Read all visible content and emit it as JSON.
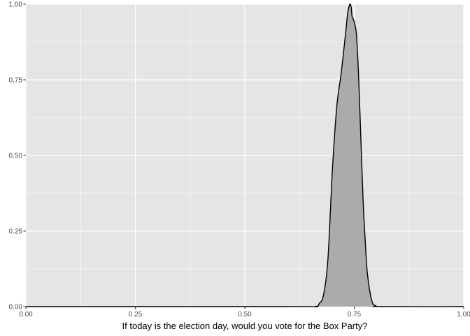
{
  "chart_data": {
    "type": "area",
    "title": "",
    "xlabel": "If today is the election day, would you vote for the Box Party?",
    "ylabel": "",
    "xlim": [
      0,
      1
    ],
    "ylim": [
      0,
      1
    ],
    "grid": true,
    "panel_color": "#e5e5e5",
    "grid_color": "#ffffff",
    "fill_color": "#ababab",
    "line_color": "#000000",
    "x_ticks": [
      {
        "value": 0,
        "label": "0.00"
      },
      {
        "value": 0.25,
        "label": "0.25"
      },
      {
        "value": 0.5,
        "label": "0.50"
      },
      {
        "value": 0.75,
        "label": "0.75"
      },
      {
        "value": 1,
        "label": "1.00"
      }
    ],
    "y_ticks": [
      {
        "value": 0,
        "label": "0.00"
      },
      {
        "value": 0.25,
        "label": "0.25"
      },
      {
        "value": 0.5,
        "label": "0.50"
      },
      {
        "value": 0.75,
        "label": "0.75"
      },
      {
        "value": 1,
        "label": "1.00"
      }
    ],
    "x_minor": [
      0.125,
      0.375,
      0.625,
      0.875
    ],
    "y_minor": [
      0.125,
      0.375,
      0.625,
      0.875
    ],
    "series": [
      {
        "x": [
          0.0,
          0.6,
          0.66,
          0.67,
          0.68,
          0.69,
          0.7,
          0.71,
          0.72,
          0.73,
          0.735,
          0.74,
          0.743,
          0.745,
          0.748,
          0.75,
          0.755,
          0.76,
          0.765,
          0.77,
          0.775,
          0.78,
          0.79,
          0.8,
          0.81,
          1.0
        ],
        "y": [
          0.0,
          0.0,
          0.0,
          0.01,
          0.04,
          0.16,
          0.45,
          0.66,
          0.77,
          0.9,
          0.97,
          1.0,
          0.99,
          0.96,
          0.95,
          0.94,
          0.9,
          0.76,
          0.56,
          0.36,
          0.22,
          0.11,
          0.02,
          0.002,
          0.0,
          0.0
        ]
      }
    ]
  }
}
